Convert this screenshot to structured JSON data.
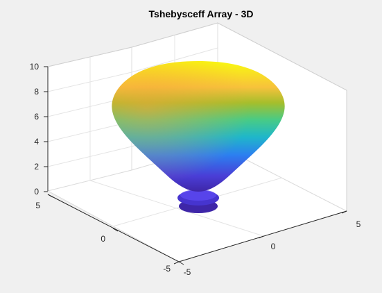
{
  "chart_data": {
    "type": "surface",
    "title": "Tshebysceff Array - 3D",
    "xlabel": "",
    "ylabel": "",
    "zlabel": "",
    "xlim": [
      -5,
      5
    ],
    "ylim": [
      -5,
      5
    ],
    "zlim": [
      0,
      10
    ],
    "x_ticks": [
      "-5",
      "0",
      "5"
    ],
    "y_ticks": [
      "5",
      "0",
      "-5"
    ],
    "z_ticks": [
      "0",
      "2",
      "4",
      "6",
      "8",
      "10"
    ],
    "grid": true,
    "colormap": "parula",
    "surface": {
      "description_shape": "main lobe (balloon) plus two small side lobes near z≈0",
      "main_lobe": {
        "z_bottom": 0.6,
        "z_widest": 6.2,
        "z_top": 8.9,
        "max_radius": 4.2
      },
      "side_lobes": [
        {
          "z": 0.35,
          "radius": 1.4
        },
        {
          "z": -0.15,
          "radius": 1.2
        }
      ]
    },
    "colors": {
      "low": "#3e26a8",
      "mid": "#1fb7c9",
      "high": "#f9fb0e",
      "grid": "#dcdcdc",
      "axis": "#262626"
    }
  }
}
